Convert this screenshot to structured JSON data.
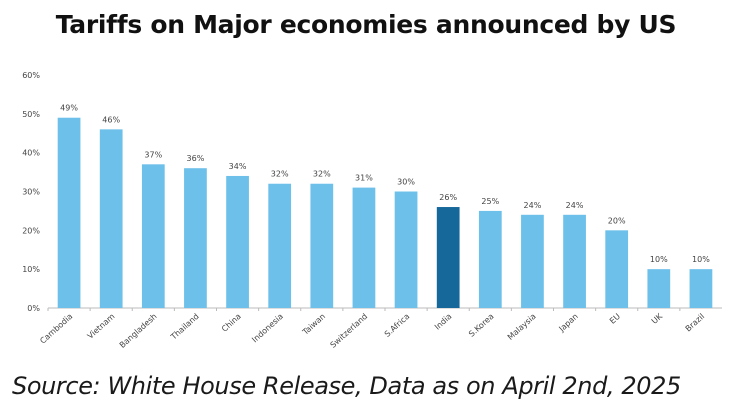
{
  "title": "Tariffs on Major economies announced by US",
  "source": "Source: White House Release, Data as on April 2nd, 2025",
  "colors": {
    "bar": "#6cc0ea",
    "highlight": "#16679a",
    "label": "#444444",
    "axis": "#bbbbbb"
  },
  "chart_data": {
    "type": "bar",
    "title": "Tariffs on Major economies announced by US",
    "categories": [
      "Cambodia",
      "Vietnam",
      "Bangladesh",
      "Thailand",
      "China",
      "Indonesia",
      "Taiwan",
      "Switzerland",
      "S.Africa",
      "India",
      "S.Korea",
      "Malaysia",
      "Japan",
      "EU",
      "UK",
      "Brazil"
    ],
    "values": [
      49,
      46,
      37,
      36,
      34,
      32,
      32,
      31,
      30,
      26,
      25,
      24,
      24,
      20,
      10,
      10
    ],
    "data_labels": [
      "49%",
      "46%",
      "37%",
      "36%",
      "34%",
      "32%",
      "32%",
      "31%",
      "30%",
      "26%",
      "25%",
      "24%",
      "24%",
      "20%",
      "10%",
      "10%"
    ],
    "highlight_index": 9,
    "yticks": [
      "0%",
      "10%",
      "20%",
      "30%",
      "40%",
      "50%",
      "60%"
    ],
    "ylim": [
      0,
      60
    ],
    "xlabel": "",
    "ylabel": "",
    "grid": false,
    "legend": "none"
  }
}
